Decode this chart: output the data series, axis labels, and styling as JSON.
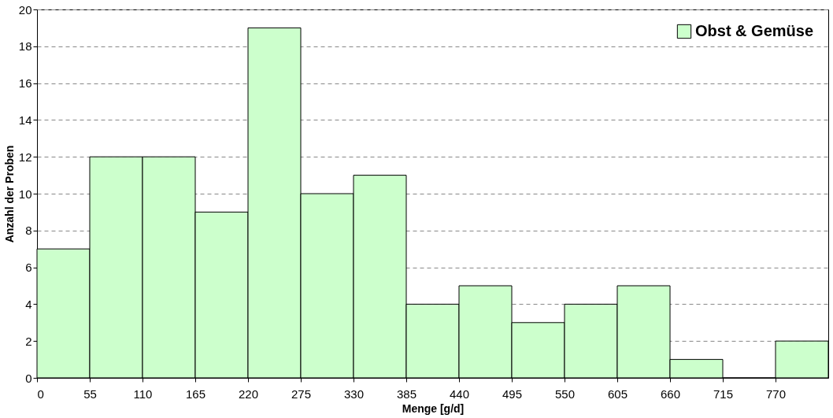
{
  "chart_data": {
    "type": "histogram",
    "xlabel": "Menge [g/d]",
    "ylabel": "Anzahl der Proben",
    "bins": [
      0,
      55,
      110,
      165,
      220,
      275,
      330,
      385,
      440,
      495,
      550,
      605,
      660,
      715,
      770,
      825
    ],
    "series": [
      {
        "name": "Obst & Gemüse",
        "color": "#ccffcc",
        "values": [
          7,
          12,
          12,
          9,
          19,
          10,
          11,
          4,
          5,
          3,
          4,
          5,
          1,
          0,
          2
        ]
      }
    ],
    "xlim": [
      0,
      825
    ],
    "xticks": [
      0,
      55,
      110,
      165,
      220,
      275,
      330,
      385,
      440,
      495,
      550,
      605,
      660,
      715,
      770
    ],
    "ylim": [
      0,
      20
    ],
    "yticks": [
      0,
      2,
      4,
      6,
      8,
      10,
      12,
      14,
      16,
      18,
      20
    ],
    "grid": "y",
    "legend": "top right"
  }
}
